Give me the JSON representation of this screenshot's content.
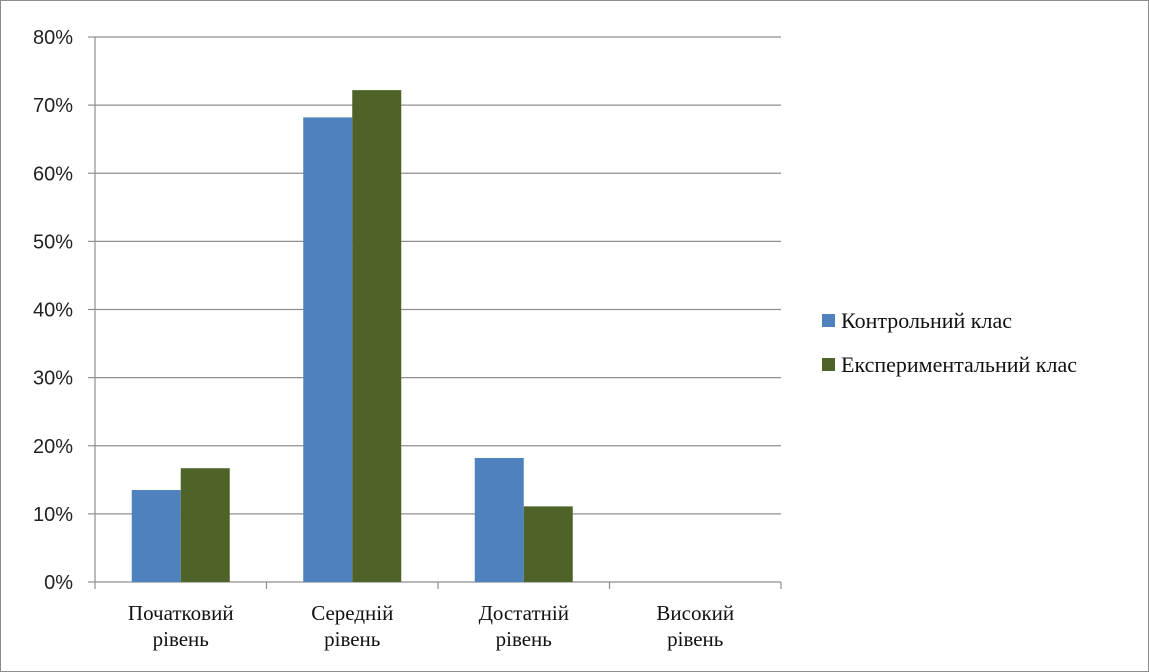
{
  "chart_data": {
    "type": "bar",
    "categories": [
      [
        "Початковий",
        "рівень"
      ],
      [
        "Середній",
        "рівень"
      ],
      [
        "Достатній",
        "рівень"
      ],
      [
        "Високий",
        "рівень"
      ]
    ],
    "series": [
      {
        "name": "Контрольний клас",
        "values": [
          13.5,
          68.2,
          18.2,
          0
        ],
        "color": "#4f81bd"
      },
      {
        "name": "Експериментальний клас",
        "values": [
          16.7,
          72.2,
          11.1,
          0
        ],
        "color": "#4f6228"
      }
    ],
    "ylim": [
      0,
      80
    ],
    "yticks": [
      0,
      10,
      20,
      30,
      40,
      50,
      60,
      70,
      80
    ],
    "ytick_format": "%",
    "grid": true,
    "legend_position": "right",
    "title": "",
    "xlabel": "",
    "ylabel": ""
  }
}
